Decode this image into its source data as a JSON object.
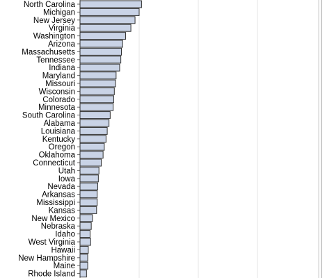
{
  "chart_data": {
    "type": "bar",
    "orientation": "horizontal",
    "title": "",
    "xlabel": "",
    "ylabel": "",
    "grid": true,
    "colors": {
      "bar_fill": "#c9d3e6",
      "bar_stroke": "#2f2f2f",
      "grid": "#e6e6e6",
      "frame": "#c8c8c8"
    },
    "categories": [
      "North Carolina",
      "Michigan",
      "New Jersey",
      "Virginia",
      "Washington",
      "Arizona",
      "Massachusetts",
      "Tennessee",
      "Indiana",
      "Maryland",
      "Missouri",
      "Wisconsin",
      "Colorado",
      "Minnesota",
      "South Carolina",
      "Alabama",
      "Louisiana",
      "Kentucky",
      "Oregon",
      "Oklahoma",
      "Connecticut",
      "Utah",
      "Iowa",
      "Nevada",
      "Arkansas",
      "Mississippi",
      "Kansas",
      "New Mexico",
      "Nebraska",
      "Idaho",
      "West Virginia",
      "Hawaii",
      "New Hampshire",
      "Maine",
      "Rhode Island"
    ],
    "values": [
      10.4,
      10.0,
      9.3,
      8.6,
      7.7,
      7.2,
      7.0,
      6.9,
      6.7,
      6.1,
      6.0,
      5.8,
      5.7,
      5.6,
      5.1,
      4.9,
      4.6,
      4.4,
      4.1,
      3.9,
      3.6,
      3.2,
      3.1,
      3.0,
      2.9,
      2.9,
      2.8,
      2.1,
      1.9,
      1.7,
      1.8,
      1.4,
      1.3,
      1.3,
      1.1
    ],
    "xlim": [
      0,
      40
    ]
  }
}
